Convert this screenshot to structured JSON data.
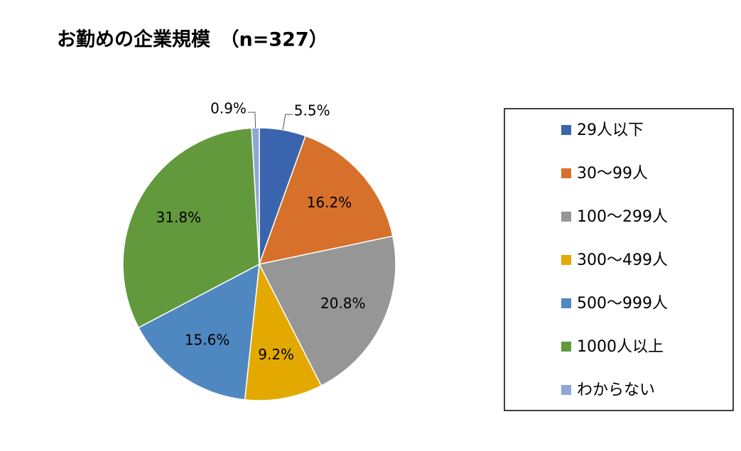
{
  "chart_data": {
    "type": "pie",
    "title": "お勤めの企業規模　（n=327）",
    "categories": [
      "29人以下",
      "30〜99人",
      "100〜299人",
      "300〜499人",
      "500〜999人",
      "1000人以上",
      "わからない"
    ],
    "values": [
      5.5,
      16.2,
      20.8,
      9.2,
      15.6,
      31.8,
      0.9
    ],
    "value_labels": [
      "5.5%",
      "16.2%",
      "20.8%",
      "9.2%",
      "15.6%",
      "31.8%",
      "0.9%"
    ],
    "colors": [
      "#3b64ae",
      "#d6702b",
      "#969696",
      "#e3a900",
      "#4f88c1",
      "#63993d",
      "#8fa7d7"
    ],
    "legend": "right"
  }
}
